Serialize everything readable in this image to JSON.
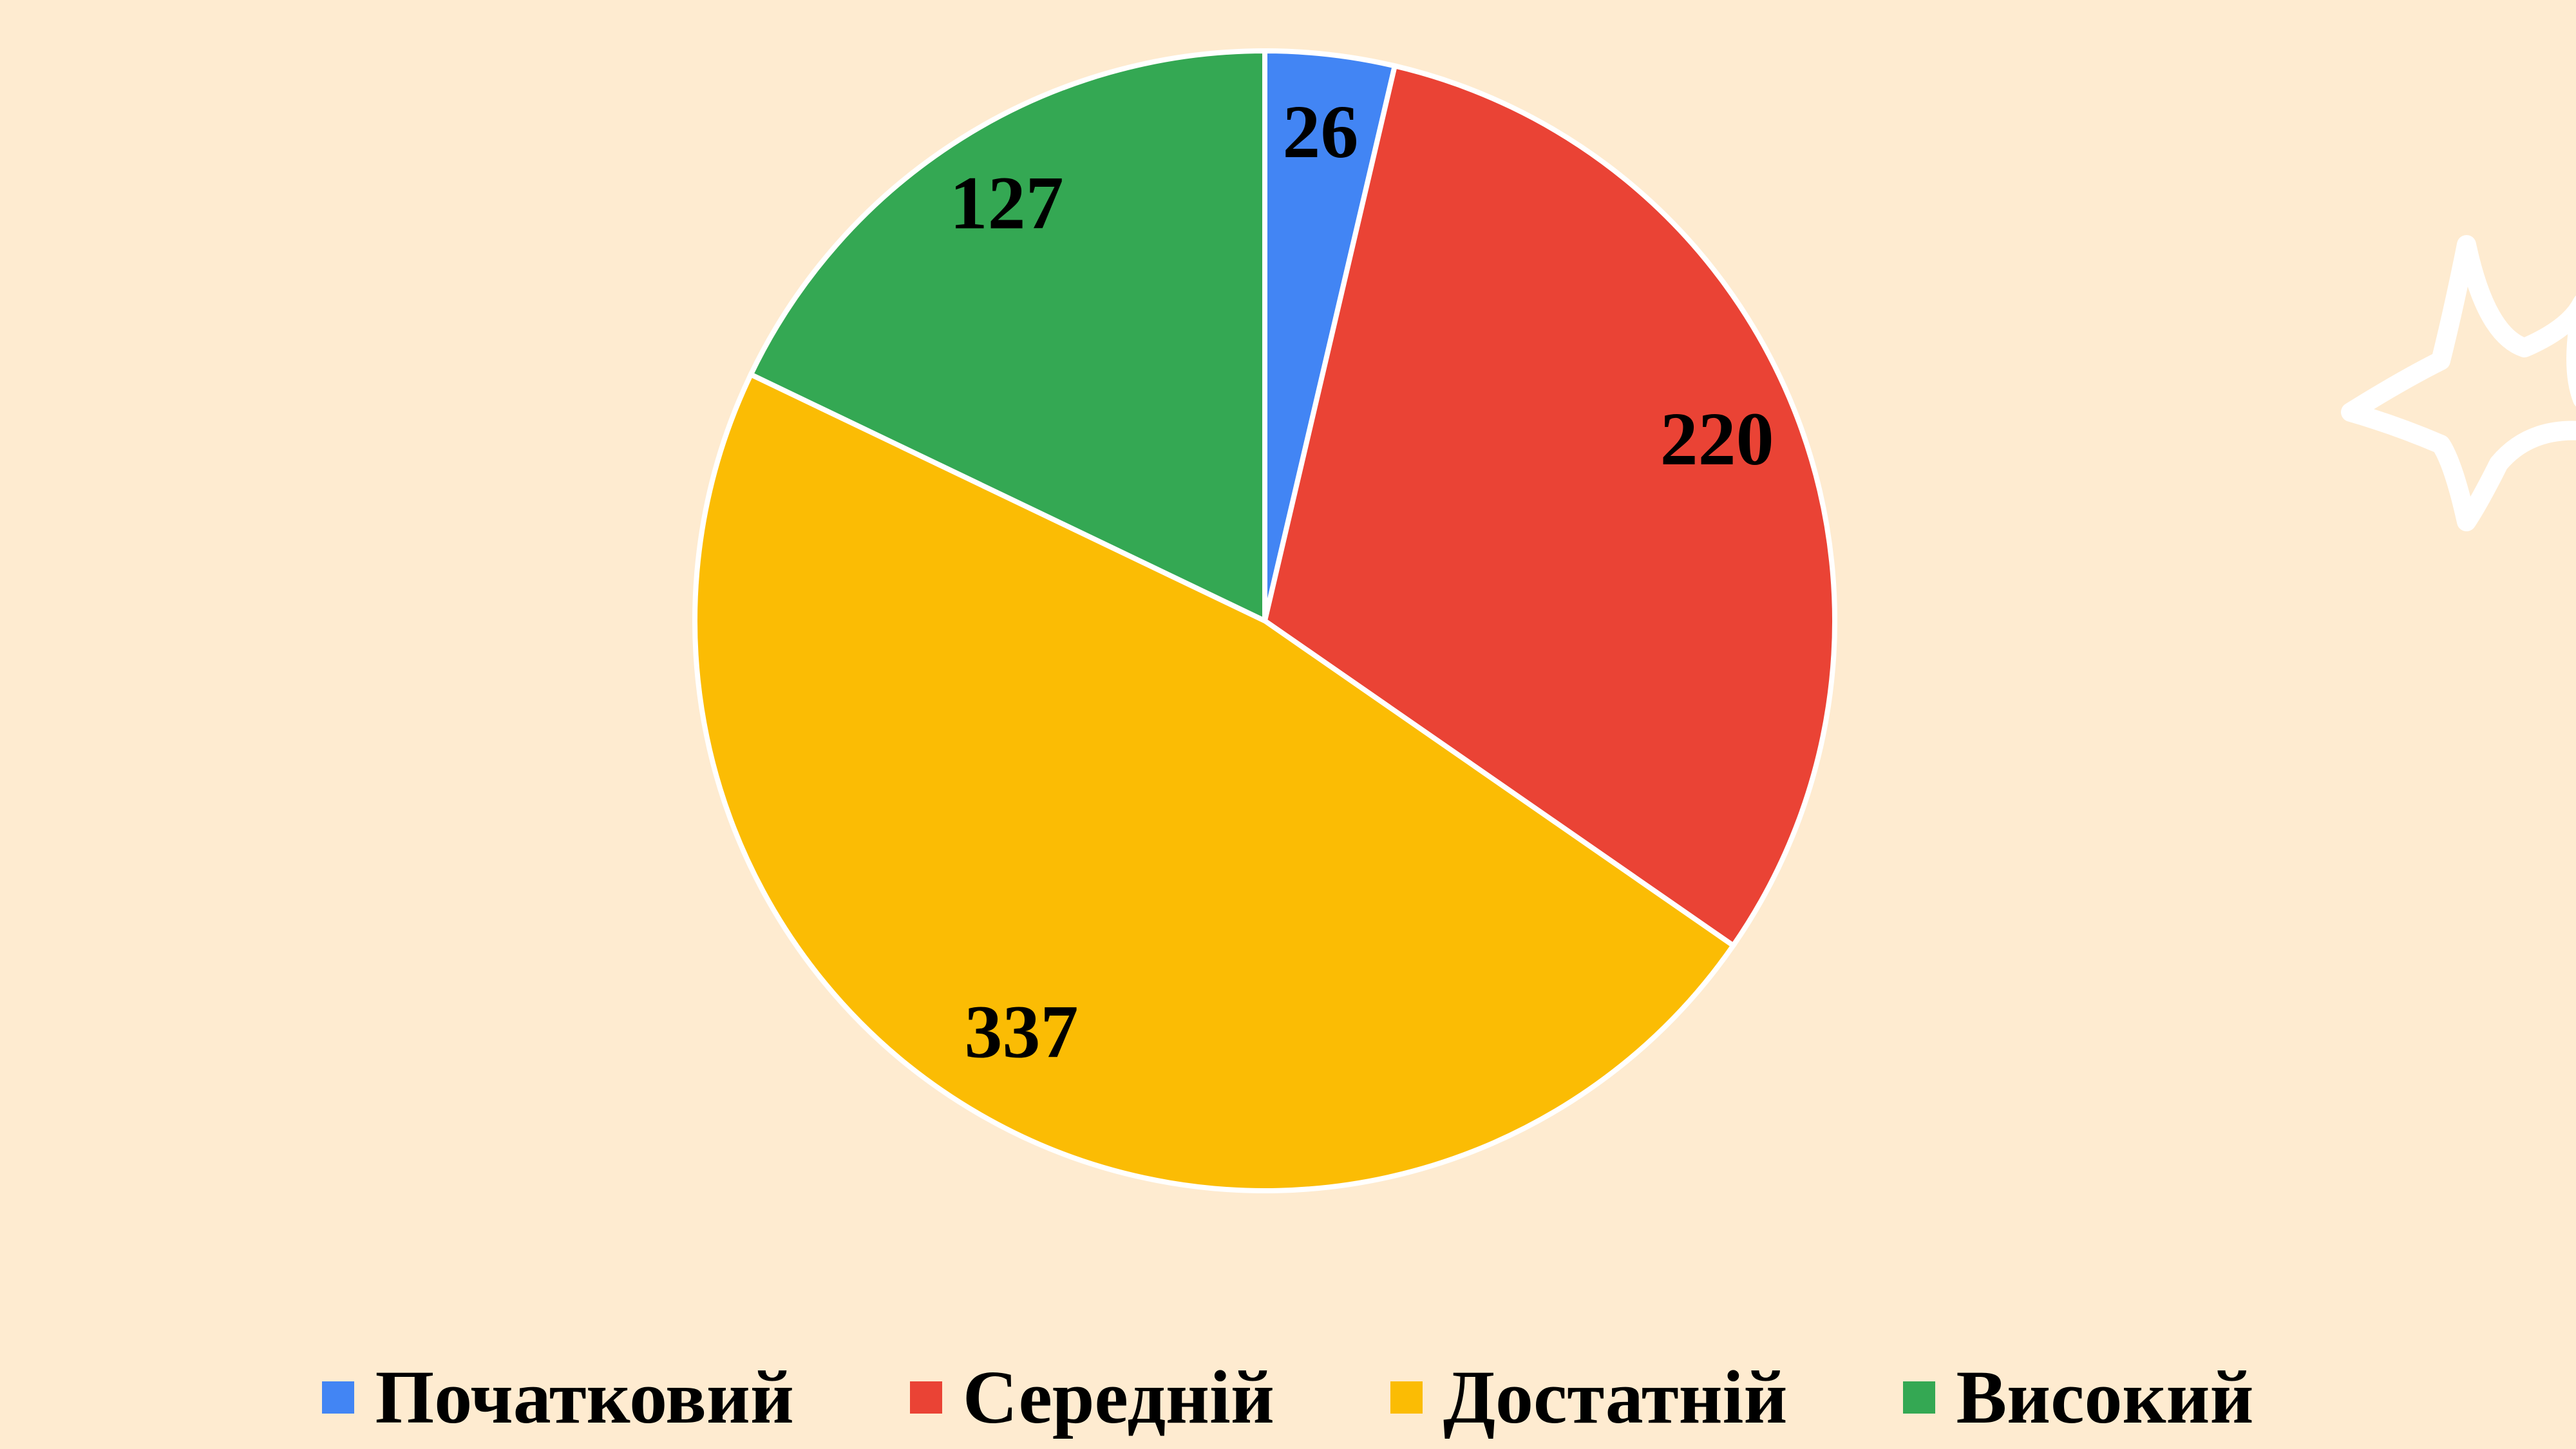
{
  "chart_data": {
    "type": "pie",
    "categories": [
      "Початковий",
      "Середній",
      "Достатній",
      "Високий"
    ],
    "values": [
      26,
      220,
      337,
      127
    ],
    "colors": [
      "#4285f4",
      "#ea4335",
      "#fbbc04",
      "#34a853"
    ]
  }
}
